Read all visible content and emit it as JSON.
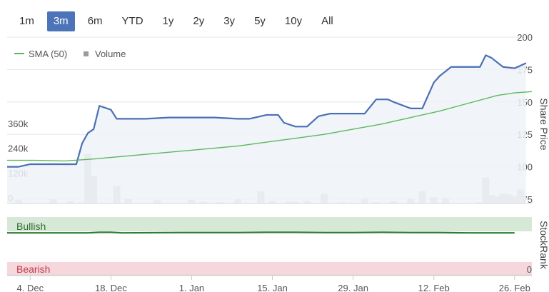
{
  "range_buttons": [
    "1m",
    "3m",
    "6m",
    "YTD",
    "1y",
    "2y",
    "3y",
    "5y",
    "10y",
    "All"
  ],
  "active_range": "3m",
  "colors": {
    "price_line": "#4a6fb5",
    "price_area": "#eef2f8",
    "sma_line": "#5cb85c",
    "volume_bar": "#c4c4c4",
    "accent": "#4d74b8",
    "bullish_band": "#d6e8d6",
    "bearish_band": "#f6d7dc",
    "stockrank_line": "#2e7d32"
  },
  "chart_data": [
    {
      "type": "line",
      "legend": [
        "SMA (50)",
        "Volume"
      ],
      "legend_placement": "top-left",
      "y_title": "Share Price",
      "y_ticks": [
        75,
        100,
        125,
        150,
        175,
        200
      ],
      "ylim": [
        75,
        200
      ],
      "volume_ticks": [
        "0",
        "120k",
        "240k",
        "360k"
      ],
      "volume_tick_values": [
        0,
        120000,
        240000,
        360000
      ],
      "volume_max": 360000,
      "x_ticks": [
        {
          "label": "4. Dec",
          "day": 4
        },
        {
          "label": "18. Dec",
          "day": 18
        },
        {
          "label": "1. Jan",
          "day": 32
        },
        {
          "label": "15. Jan",
          "day": 46
        },
        {
          "label": "29. Jan",
          "day": 60
        },
        {
          "label": "12. Feb",
          "day": 74
        },
        {
          "label": "26. Feb",
          "day": 88
        }
      ],
      "xlim": [
        0,
        91
      ],
      "series": [
        {
          "name": "Share Price",
          "x": [
            0,
            2,
            4,
            6,
            8,
            10,
            12,
            13,
            14,
            15,
            16,
            18,
            19,
            21,
            24,
            28,
            32,
            36,
            40,
            42,
            45,
            47,
            48,
            50,
            52,
            54,
            56,
            58,
            60,
            62,
            64,
            66,
            67,
            70,
            72,
            74,
            75,
            77,
            79,
            81,
            82,
            83,
            84,
            86,
            88,
            90
          ],
          "values": [
            100,
            100,
            102,
            102,
            102,
            102,
            102,
            118,
            126,
            129,
            147,
            144,
            137,
            137,
            137,
            138,
            138,
            138,
            137,
            137,
            140,
            140,
            134,
            131,
            131,
            139,
            141,
            141,
            141,
            141,
            152,
            152,
            150,
            145,
            145,
            165,
            170,
            177,
            177,
            177,
            177,
            186,
            184,
            177,
            176,
            180
          ]
        },
        {
          "name": "SMA (50)",
          "x": [
            0,
            5,
            10,
            15,
            20,
            25,
            30,
            35,
            40,
            45,
            50,
            55,
            60,
            65,
            70,
            75,
            80,
            85,
            88,
            91
          ],
          "values": [
            105,
            105,
            104.5,
            106,
            108,
            110,
            112,
            114,
            116,
            119,
            122,
            125,
            129,
            133,
            138,
            143,
            149,
            155,
            157,
            158
          ]
        },
        {
          "name": "Volume",
          "type": "bar",
          "x": [
            2,
            4,
            8,
            11,
            13,
            14,
            15,
            17,
            19,
            21,
            26,
            32,
            34,
            37,
            40,
            42,
            44,
            46,
            49,
            50,
            52,
            53,
            55,
            58,
            60,
            62,
            64,
            67,
            70,
            72,
            74,
            76,
            78,
            82,
            83,
            84,
            85,
            86,
            87,
            88,
            89
          ],
          "values": [
            18000,
            4000,
            20000,
            10000,
            5000,
            240000,
            132000,
            4000,
            85000,
            22000,
            16000,
            18000,
            8000,
            7000,
            20000,
            3000,
            60000,
            12000,
            10000,
            8000,
            14000,
            3000,
            47000,
            6000,
            4000,
            25000,
            6000,
            10000,
            22000,
            60000,
            30000,
            26000,
            3000,
            6000,
            126000,
            40000,
            33000,
            47000,
            43000,
            34000,
            67000
          ]
        }
      ]
    },
    {
      "type": "area",
      "y_title": "StockRank",
      "y_ticks": [
        0
      ],
      "bands": [
        "Bullish",
        "Bearish"
      ],
      "series": [
        {
          "name": "StockRank",
          "x": [
            0,
            10,
            14,
            16,
            18,
            20,
            30,
            40,
            45,
            50,
            55,
            60,
            65,
            70,
            75,
            80,
            85,
            88
          ],
          "values": [
            70,
            70,
            70,
            71,
            71,
            70,
            70.5,
            70.5,
            71,
            71,
            70.5,
            70.5,
            71,
            70.5,
            70.5,
            70,
            70,
            70
          ]
        }
      ]
    }
  ]
}
